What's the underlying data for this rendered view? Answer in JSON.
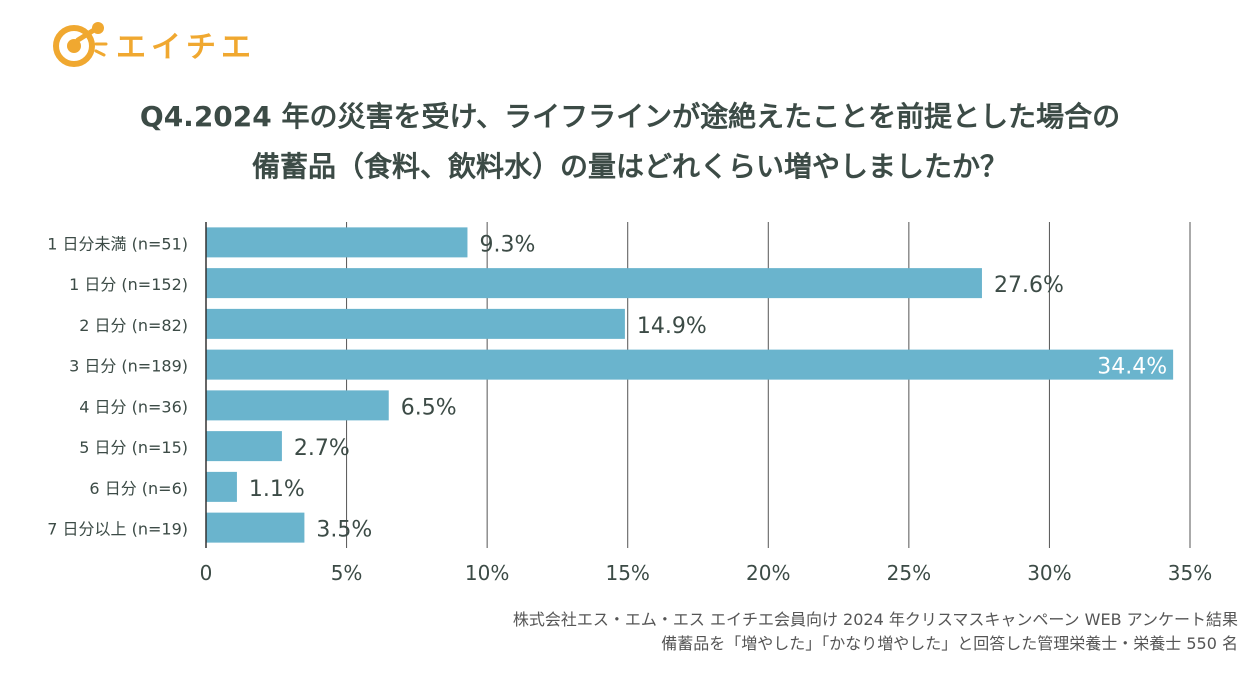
{
  "brand": {
    "name": "エイチエ",
    "accent": "#f0a830"
  },
  "title": {
    "line1": "Q4.2024 年の災害を受け、ライフラインが途絶えたことを前提とした場合の",
    "line2": "備蓄品（食料、飲料水）の量はどれくらい増やしましたか？"
  },
  "chart_data": {
    "type": "bar",
    "orientation": "horizontal",
    "categories": [
      "1 日分未満 (n=51)",
      "1 日分 (n=152)",
      "2 日分 (n=82)",
      "3 日分 (n=189)",
      "4 日分 (n=36)",
      "5 日分 (n=15)",
      "6 日分 (n=6)",
      "7 日分以上 (n=19)"
    ],
    "values": [
      9.3,
      27.6,
      14.9,
      34.4,
      6.5,
      2.7,
      1.1,
      3.5
    ],
    "value_labels": [
      "9.3%",
      "27.6%",
      "14.9%",
      "34.4%",
      "6.5%",
      "2.7%",
      "1.1%",
      "3.5%"
    ],
    "x_ticks": [
      "0",
      "5%",
      "10%",
      "15%",
      "20%",
      "25%",
      "30%",
      "35%"
    ],
    "xlim": [
      0,
      35
    ],
    "grid": true,
    "bar_color": "#6ab4cd"
  },
  "footer": {
    "line1": "株式会社エス・エム・エス エイチエ会員向け 2024 年クリスマスキャンペーン WEB アンケート結果",
    "line2": "備蓄品を「増やした」「かなり増やした」と回答した管理栄養士・栄養士 550 名"
  }
}
